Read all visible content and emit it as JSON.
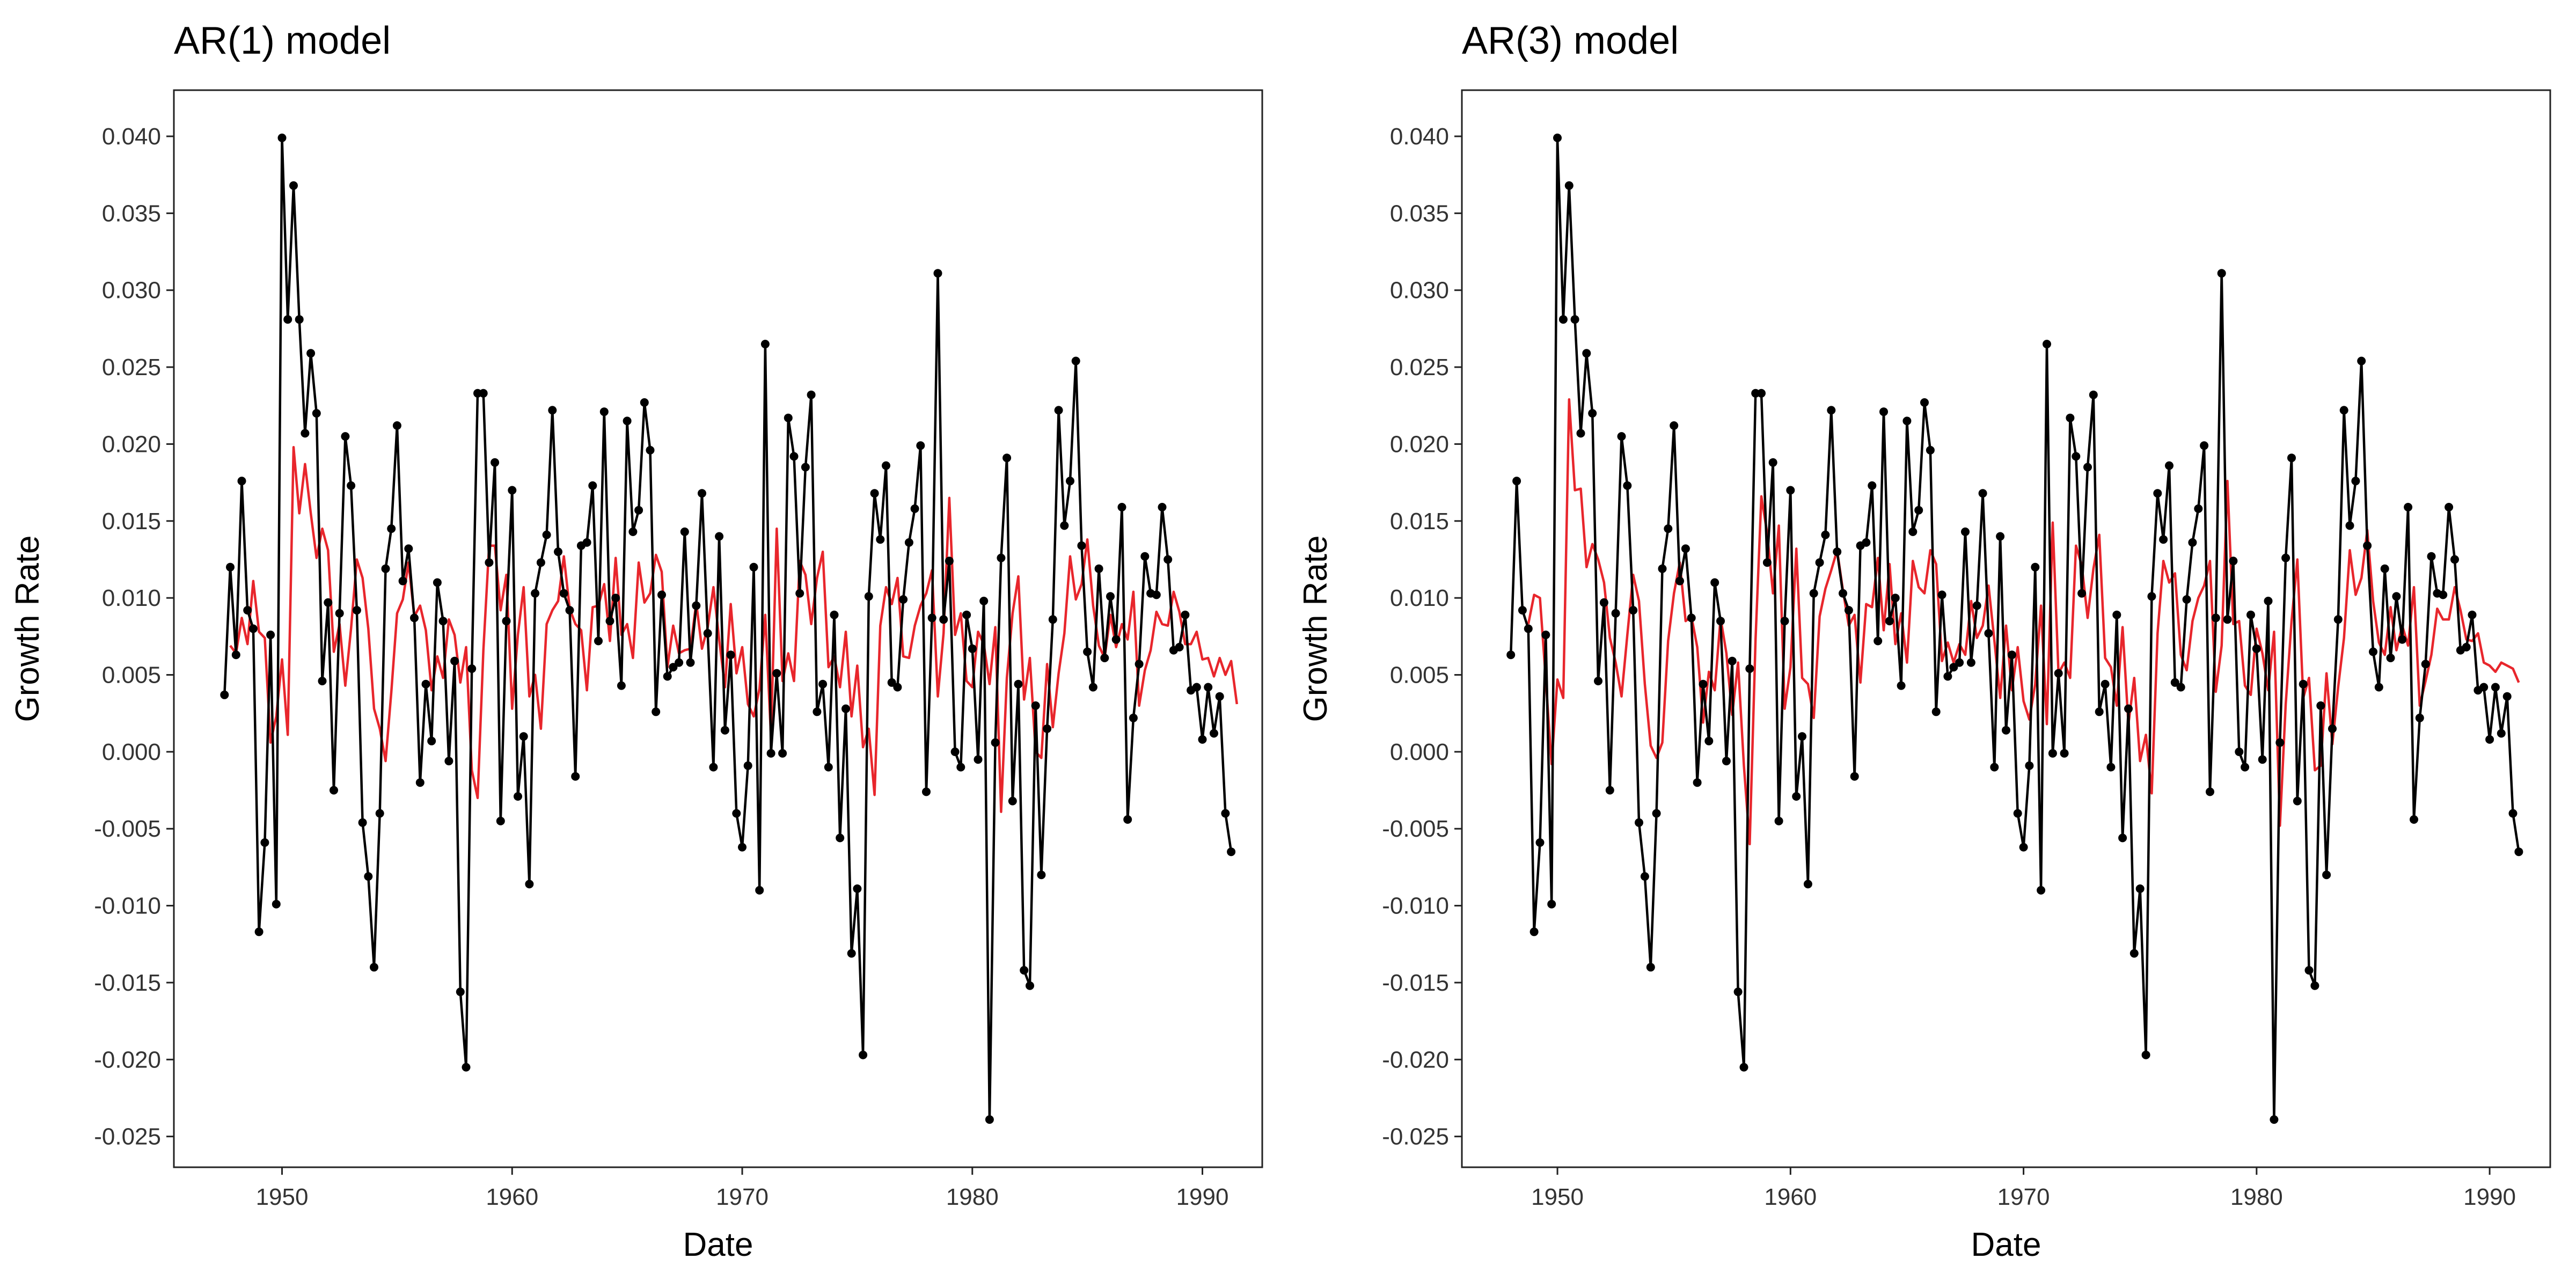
{
  "chart_data": [
    {
      "type": "line",
      "title": "AR(1) model",
      "xlabel": "Date",
      "ylabel": "Growth Rate",
      "xlim": [
        1945.3,
        1992.6
      ],
      "ylim": [
        -0.027,
        0.043
      ],
      "xticks": [
        1950,
        1960,
        1970,
        1980,
        1990
      ],
      "xtick_labels": [
        "1950",
        "1960",
        "1970",
        "1980",
        "1990"
      ],
      "yticks": [
        -0.025,
        -0.02,
        -0.015,
        -0.01,
        -0.005,
        0.0,
        0.005,
        0.01,
        0.015,
        0.02,
        0.025,
        0.03,
        0.035,
        0.04
      ],
      "ytick_labels": [
        "-0.025",
        "-0.020",
        "-0.015",
        "-0.010",
        "-0.005",
        "0.000",
        "0.005",
        "0.010",
        "0.015",
        "0.020",
        "0.025",
        "0.030",
        "0.035",
        "0.040"
      ],
      "grid": false,
      "colors": {
        "observed": "#000000",
        "fitted": "#e8262c"
      },
      "x_start": 1947.5,
      "x_step": 0.25,
      "series": [
        {
          "role": "observed",
          "values": [
            0.0037,
            0.012,
            0.0063,
            0.0176,
            0.0092,
            0.008,
            -0.0117,
            -0.0059,
            0.0076,
            -0.0099,
            0.0399,
            0.0281,
            0.0368,
            0.0281,
            0.0207,
            0.0259,
            0.022,
            0.0046,
            0.0097,
            -0.0025,
            0.009,
            0.0205,
            0.0173,
            0.0092,
            -0.0046,
            -0.0081,
            -0.014,
            -0.004,
            0.0119,
            0.0145,
            0.0212,
            0.0111,
            0.0132,
            0.0087,
            -0.002,
            0.0044,
            0.0007,
            0.011,
            0.0085,
            -0.0006,
            0.0059,
            -0.0156,
            -0.0205,
            0.0054,
            0.0233,
            0.0233,
            0.0123,
            0.0188,
            -0.0045,
            0.0085,
            0.017,
            -0.0029,
            0.001,
            -0.0086,
            0.0103,
            0.0123,
            0.0141,
            0.0222,
            0.013,
            0.0103,
            0.0092,
            -0.0016,
            0.0134,
            0.0136,
            0.0173,
            0.0072,
            0.0221,
            0.0085,
            0.01,
            0.0043,
            0.0215,
            0.0143,
            0.0157,
            0.0227,
            0.0196,
            0.0026,
            0.0102,
            0.0049,
            0.0055,
            0.0058,
            0.0143,
            0.0058,
            0.0095,
            0.0168,
            0.0077,
            -0.001,
            0.014,
            0.0014,
            0.0063,
            -0.004,
            -0.0062,
            -0.0009,
            0.012,
            -0.009,
            0.0265,
            -0.0001,
            0.0051,
            -0.0001,
            0.0217,
            0.0192,
            0.0103,
            0.0185,
            0.0232,
            0.0026,
            0.0044,
            -0.001,
            0.0089,
            -0.0056,
            0.0028,
            -0.0131,
            -0.0089,
            -0.0197,
            0.0101,
            0.0168,
            0.0138,
            0.0186,
            0.0045,
            0.0042,
            0.0099,
            0.0136,
            0.0158,
            0.0199,
            -0.0026,
            0.0087,
            0.0311,
            0.0086,
            0.0124,
            0.0,
            -0.001,
            0.0089,
            0.0067,
            -0.0005,
            0.0098,
            -0.0239,
            0.0006,
            0.0126,
            0.0191,
            -0.0032,
            0.0044,
            -0.0142,
            -0.0152,
            0.003,
            -0.008,
            0.0015,
            0.0086,
            0.0222,
            0.0147,
            0.0176,
            0.0254,
            0.0134,
            0.0065,
            0.0042,
            0.0119,
            0.0061,
            0.0101,
            0.0073,
            0.0159,
            -0.0044,
            0.0022,
            0.0057,
            0.0127,
            0.0103,
            0.0102,
            0.0159,
            0.0125,
            0.0066,
            0.0068,
            0.0089,
            0.004,
            0.0042,
            0.0008,
            0.0042,
            0.0012,
            0.0036,
            -0.004,
            -0.0065
          ]
        },
        {
          "role": "fitted",
          "values": [
            0.0069,
            0.0064,
            0.0087,
            0.007,
            0.0111,
            0.0078,
            0.0074,
            0.0006,
            0.0023,
            0.006,
            0.0011,
            0.0198,
            0.0155,
            0.0187,
            0.0155,
            0.0126,
            0.0145,
            0.0131,
            0.0065,
            0.0083,
            0.0043,
            0.008,
            0.0125,
            0.0113,
            0.008,
            0.0028,
            0.0015,
            -0.0006,
            0.0039,
            0.009,
            0.0099,
            0.0123,
            0.0088,
            0.0095,
            0.0079,
            0.004,
            0.0062,
            0.0048,
            0.0086,
            0.0076,
            0.0045,
            0.0068,
            -0.0012,
            -0.003,
            0.0066,
            0.0134,
            0.0134,
            0.0092,
            0.0115,
            0.0028,
            0.0076,
            0.0107,
            0.0036,
            0.005,
            0.0015,
            0.0083,
            0.0092,
            0.0098,
            0.0127,
            0.0093,
            0.0083,
            0.0079,
            0.004,
            0.0094,
            0.0095,
            0.0109,
            0.0072,
            0.0126,
            0.0076,
            0.0083,
            0.0061,
            0.0123,
            0.0097,
            0.0103,
            0.0128,
            0.0117,
            0.0055,
            0.0082,
            0.0064,
            0.0066,
            0.0067,
            0.0097,
            0.0067,
            0.0081,
            0.0107,
            0.0073,
            0.0042,
            0.0096,
            0.0051,
            0.0068,
            0.0031,
            0.0023,
            0.0041,
            0.0089,
            0.001,
            0.0145,
            0.0046,
            0.0064,
            0.0046,
            0.0124,
            0.0115,
            0.0083,
            0.0113,
            0.013,
            0.0055,
            0.0062,
            0.0042,
            0.0078,
            0.0023,
            0.0056,
            0.0003,
            0.0015,
            -0.0028,
            0.0082,
            0.0107,
            0.0096,
            0.0113,
            0.0062,
            0.0061,
            0.0082,
            0.0095,
            0.0103,
            0.0118,
            0.0036,
            0.0077,
            0.0165,
            0.0076,
            0.009,
            0.0046,
            0.0042,
            0.0078,
            0.007,
            0.0044,
            0.0081,
            -0.0039,
            0.0048,
            0.009,
            0.0114,
            0.0034,
            0.0061,
            0.0,
            -0.0004,
            0.0057,
            0.0016,
            0.0051,
            0.0077,
            0.0127,
            0.0099,
            0.0109,
            0.0138,
            0.0095,
            0.0069,
            0.0061,
            0.0089,
            0.0068,
            0.0083,
            0.0073,
            0.0104,
            0.003,
            0.0053,
            0.0066,
            0.0091,
            0.0083,
            0.0082,
            0.0104,
            0.0091,
            0.007,
            0.007,
            0.0078,
            0.006,
            0.0061,
            0.0049,
            0.0061,
            0.005,
            0.0059,
            0.0031
          ]
        }
      ]
    },
    {
      "type": "line",
      "title": "AR(3) model",
      "xlabel": "Date",
      "ylabel": "Growth Rate",
      "xlim": [
        1945.9,
        1992.6
      ],
      "ylim": [
        -0.027,
        0.043
      ],
      "xticks": [
        1950,
        1960,
        1970,
        1980,
        1990
      ],
      "xtick_labels": [
        "1950",
        "1960",
        "1970",
        "1980",
        "1990"
      ],
      "yticks": [
        -0.025,
        -0.02,
        -0.015,
        -0.01,
        -0.005,
        0.0,
        0.005,
        0.01,
        0.015,
        0.02,
        0.025,
        0.03,
        0.035,
        0.04
      ],
      "ytick_labels": [
        "-0.025",
        "-0.020",
        "-0.015",
        "-0.010",
        "-0.005",
        "0.000",
        "0.005",
        "0.010",
        "0.015",
        "0.020",
        "0.025",
        "0.030",
        "0.035",
        "0.040"
      ],
      "grid": false,
      "colors": {
        "observed": "#000000",
        "fitted": "#e8262c"
      },
      "x_start": 1948.0,
      "x_step": 0.25,
      "series": [
        {
          "role": "observed",
          "values": [
            0.0063,
            0.0176,
            0.0092,
            0.008,
            -0.0117,
            -0.0059,
            0.0076,
            -0.0099,
            0.0399,
            0.0281,
            0.0368,
            0.0281,
            0.0207,
            0.0259,
            0.022,
            0.0046,
            0.0097,
            -0.0025,
            0.009,
            0.0205,
            0.0173,
            0.0092,
            -0.0046,
            -0.0081,
            -0.014,
            -0.004,
            0.0119,
            0.0145,
            0.0212,
            0.0111,
            0.0132,
            0.0087,
            -0.002,
            0.0044,
            0.0007,
            0.011,
            0.0085,
            -0.0006,
            0.0059,
            -0.0156,
            -0.0205,
            0.0054,
            0.0233,
            0.0233,
            0.0123,
            0.0188,
            -0.0045,
            0.0085,
            0.017,
            -0.0029,
            0.001,
            -0.0086,
            0.0103,
            0.0123,
            0.0141,
            0.0222,
            0.013,
            0.0103,
            0.0092,
            -0.0016,
            0.0134,
            0.0136,
            0.0173,
            0.0072,
            0.0221,
            0.0085,
            0.01,
            0.0043,
            0.0215,
            0.0143,
            0.0157,
            0.0227,
            0.0196,
            0.0026,
            0.0102,
            0.0049,
            0.0055,
            0.0058,
            0.0143,
            0.0058,
            0.0095,
            0.0168,
            0.0077,
            -0.001,
            0.014,
            0.0014,
            0.0063,
            -0.004,
            -0.0062,
            -0.0009,
            0.012,
            -0.009,
            0.0265,
            -0.0001,
            0.0051,
            -0.0001,
            0.0217,
            0.0192,
            0.0103,
            0.0185,
            0.0232,
            0.0026,
            0.0044,
            -0.001,
            0.0089,
            -0.0056,
            0.0028,
            -0.0131,
            -0.0089,
            -0.0197,
            0.0101,
            0.0168,
            0.0138,
            0.0186,
            0.0045,
            0.0042,
            0.0099,
            0.0136,
            0.0158,
            0.0199,
            -0.0026,
            0.0087,
            0.0311,
            0.0086,
            0.0124,
            0.0,
            -0.001,
            0.0089,
            0.0067,
            -0.0005,
            0.0098,
            -0.0239,
            0.0006,
            0.0126,
            0.0191,
            -0.0032,
            0.0044,
            -0.0142,
            -0.0152,
            0.003,
            -0.008,
            0.0015,
            0.0086,
            0.0222,
            0.0147,
            0.0176,
            0.0254,
            0.0134,
            0.0065,
            0.0042,
            0.0119,
            0.0061,
            0.0101,
            0.0073,
            0.0159,
            -0.0044,
            0.0022,
            0.0057,
            0.0127,
            0.0103,
            0.0102,
            0.0159,
            0.0125,
            0.0066,
            0.0068,
            0.0089,
            0.004,
            0.0042,
            0.0008,
            0.0042,
            0.0012,
            0.0036,
            -0.004,
            -0.0065
          ]
        },
        {
          "role": "fitted",
          "values": [
            0.0083,
            0.0102,
            0.01,
            0.0047,
            -0.0008,
            0.0047,
            0.0035,
            0.0229,
            0.017,
            0.0171,
            0.012,
            0.0135,
            0.0125,
            0.011,
            0.0074,
            0.0058,
            0.0036,
            0.0076,
            0.0115,
            0.0098,
            0.0044,
            0.0004,
            -0.0004,
            0.0006,
            0.0072,
            0.0103,
            0.0123,
            0.0085,
            0.0088,
            0.0068,
            0.0019,
            0.0052,
            0.004,
            0.0087,
            0.0064,
            0.0024,
            0.0058,
            -0.0009,
            -0.006,
            0.0073,
            0.0166,
            0.0142,
            0.0103,
            0.0147,
            0.0028,
            0.0055,
            0.0132,
            0.0048,
            0.0044,
            0.0022,
            0.0088,
            0.0106,
            0.0118,
            0.0131,
            0.0105,
            0.0082,
            0.0089,
            0.0045,
            0.0096,
            0.0094,
            0.0126,
            0.0079,
            0.0122,
            0.007,
            0.009,
            0.0058,
            0.0124,
            0.0107,
            0.0103,
            0.0131,
            0.0122,
            0.0059,
            0.0071,
            0.0058,
            0.007,
            0.0063,
            0.0098,
            0.0074,
            0.0082,
            0.0108,
            0.0072,
            0.0035,
            0.0082,
            0.004,
            0.0068,
            0.0033,
            0.0021,
            0.0044,
            0.0095,
            0.0018,
            0.0149,
            0.0051,
            0.0058,
            0.0048,
            0.0134,
            0.0121,
            0.0087,
            0.0119,
            0.0141,
            0.0061,
            0.0055,
            0.003,
            0.0081,
            0.0018,
            0.0048,
            -0.0006,
            0.0011,
            -0.0027,
            0.0077,
            0.0124,
            0.011,
            0.0116,
            0.0063,
            0.0053,
            0.0085,
            0.01,
            0.0108,
            0.0124,
            0.0039,
            0.0069,
            0.0176,
            0.0083,
            0.0085,
            0.0043,
            0.0037,
            0.008,
            0.0064,
            0.004,
            0.0078,
            -0.0048,
            0.0031,
            0.0085,
            0.0125,
            0.0035,
            0.0048,
            -0.0012,
            -0.0009,
            0.0051,
            0.0005,
            0.0042,
            0.0074,
            0.0131,
            0.0102,
            0.0113,
            0.0144,
            0.0098,
            0.0071,
            0.0063,
            0.0094,
            0.0066,
            0.0082,
            0.0069,
            0.0107,
            0.003,
            0.0046,
            0.0063,
            0.0093,
            0.0086,
            0.0086,
            0.0107,
            0.0092,
            0.0073,
            0.0072,
            0.0077,
            0.0058,
            0.0056,
            0.0052,
            0.0058,
            0.0056,
            0.0054,
            0.0045
          ]
        }
      ]
    }
  ]
}
